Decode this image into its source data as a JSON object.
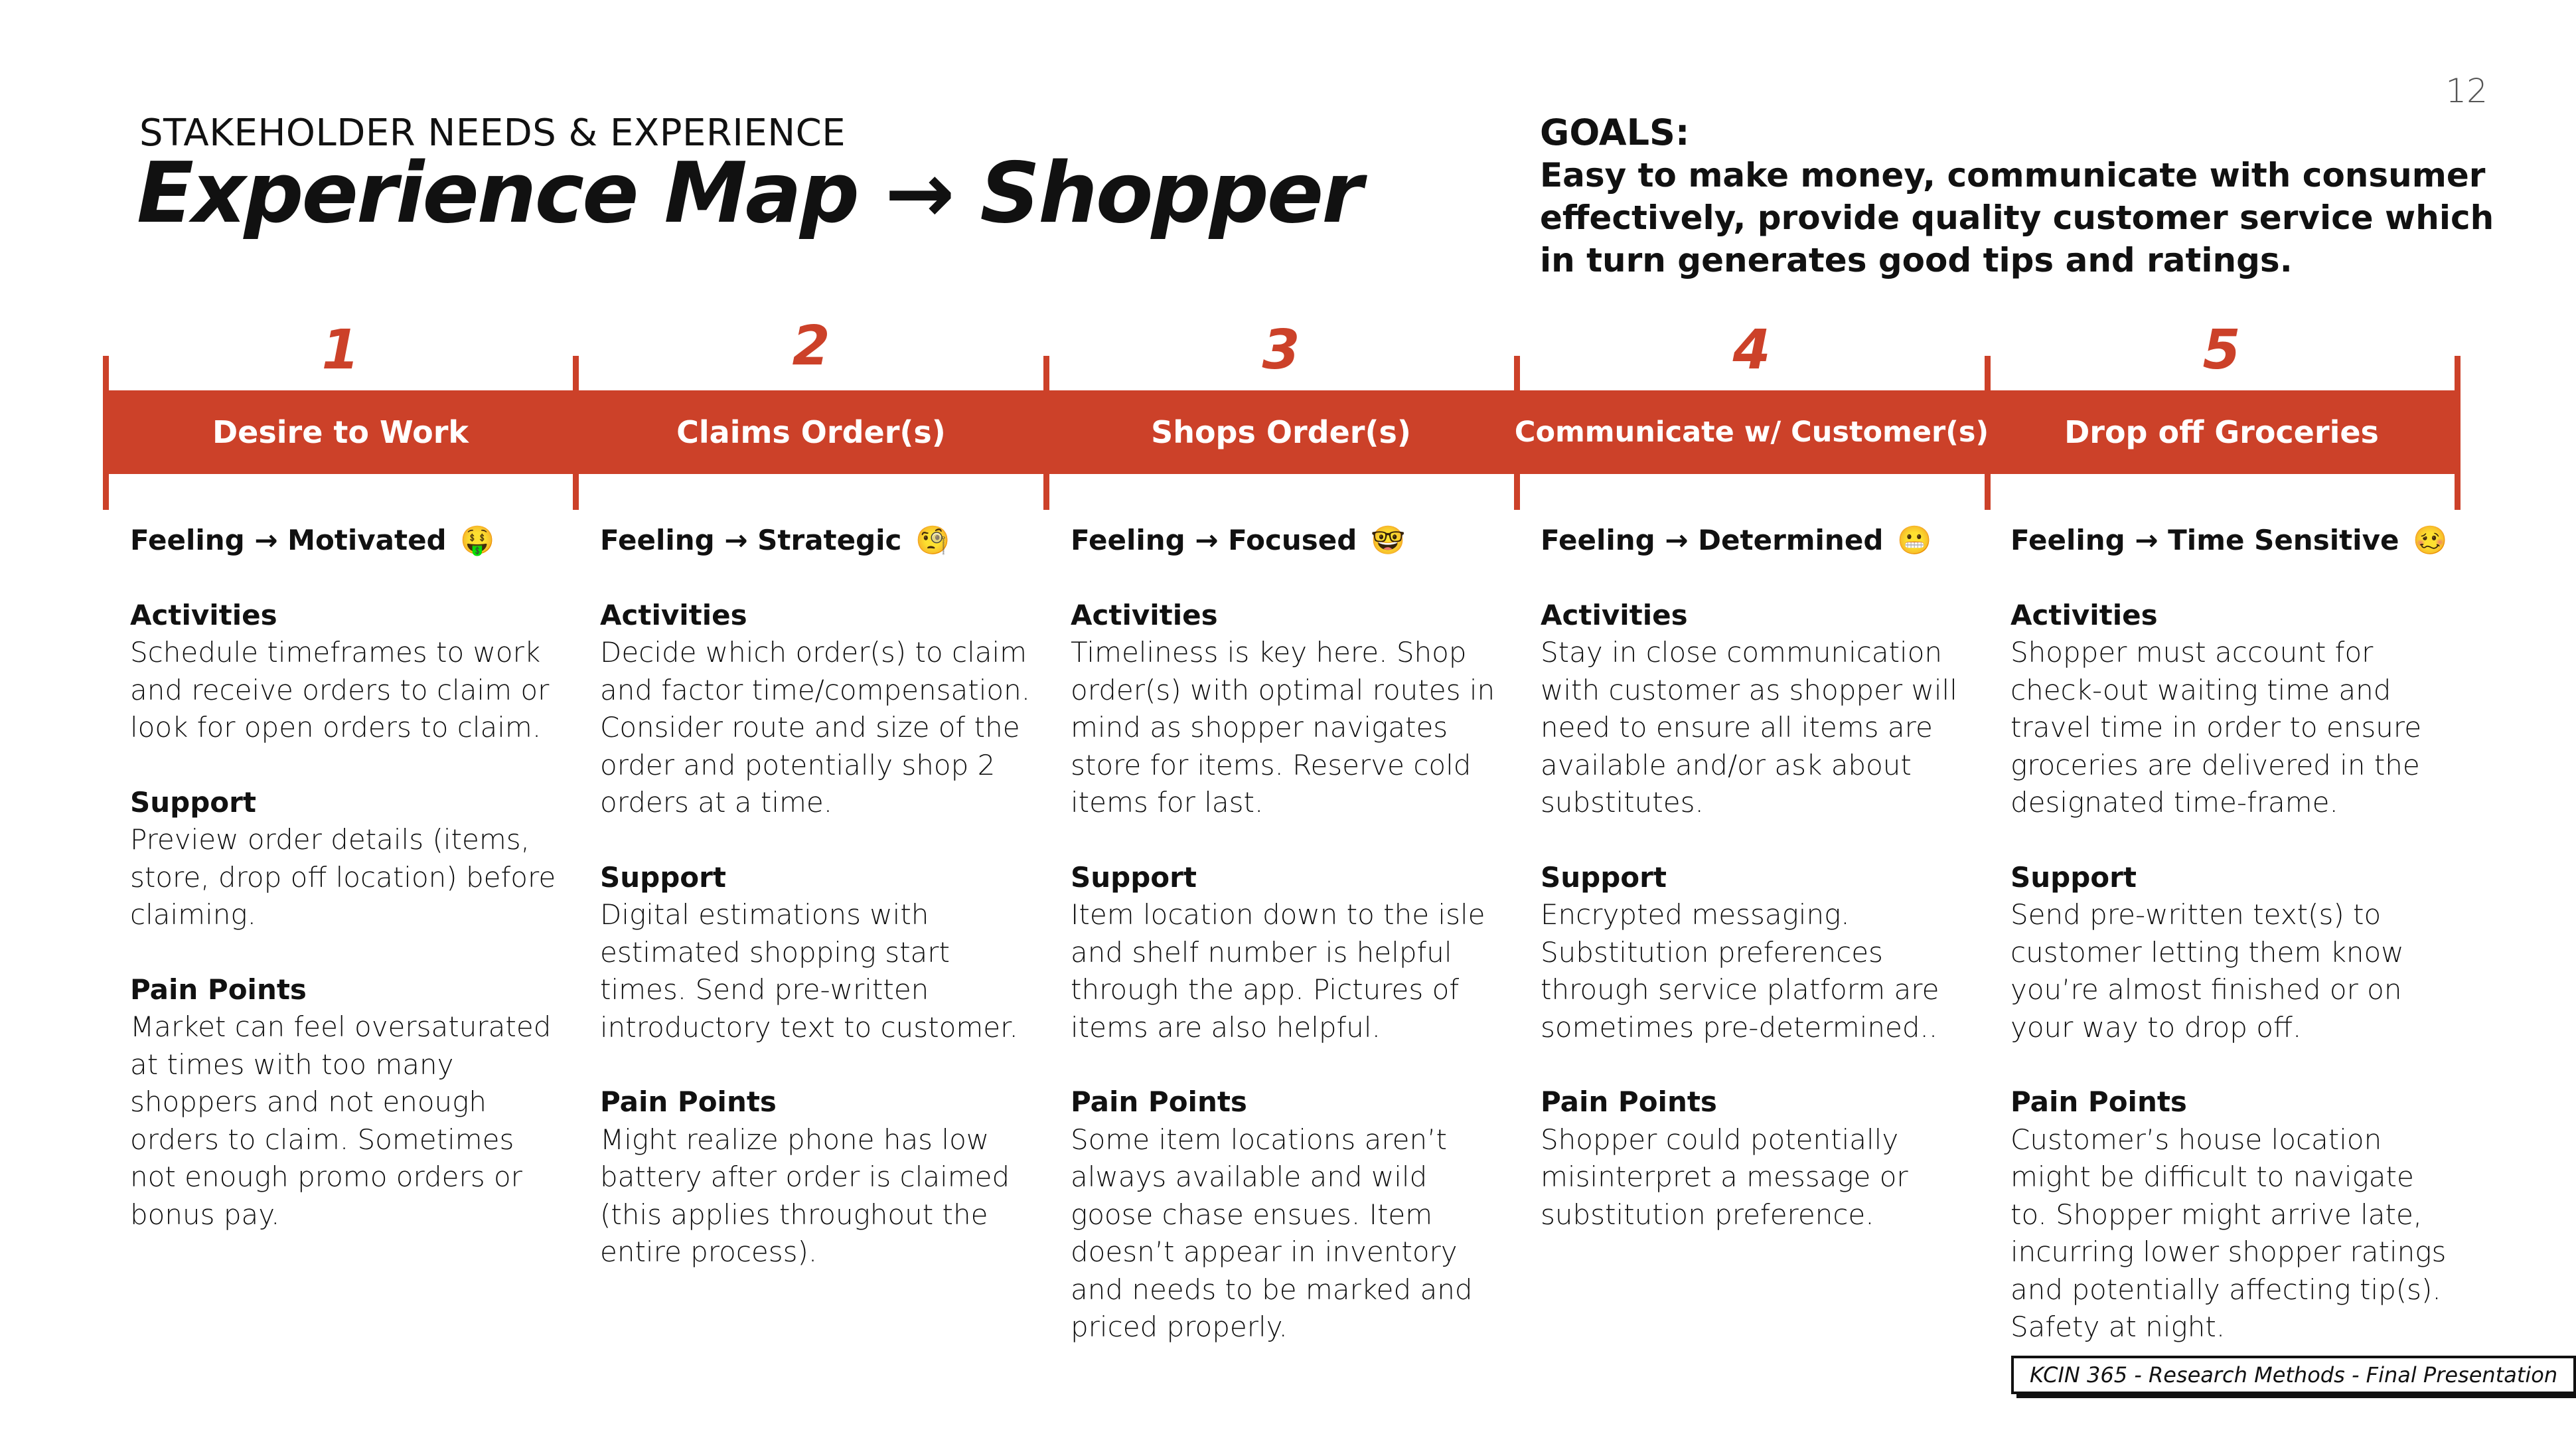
{
  "page_number": "12",
  "header": {
    "overline": "STAKEHOLDER NEEDS & EXPERIENCE",
    "title": "Experience Map → Shopper"
  },
  "goals": {
    "heading": "GOALS:",
    "text": "Easy to make money, communicate with consumer effectively, provide quality customer service which in turn generates good tips and ratings."
  },
  "colors": {
    "accent": "#cc4129"
  },
  "steps": [
    {
      "number": "1",
      "label": "Desire to Work",
      "feeling": "Feeling → Motivated",
      "emoji": "🤑",
      "activities_title": "Activities",
      "activities": "Schedule timeframes to work and receive orders to claim or look for open orders to claim.",
      "support_title": "Support",
      "support": "Preview order details (items, store, drop off location) before claiming.",
      "pain_title": "Pain Points",
      "pain": "Market can feel oversaturated at times with too many shoppers and not enough orders to claim. Sometimes not enough promo orders or bonus pay."
    },
    {
      "number": "2",
      "label": "Claims Order(s)",
      "feeling": "Feeling → Strategic",
      "emoji": "🧐",
      "activities_title": "Activities",
      "activities": "Decide which order(s) to claim and factor time/compensation. Consider route and size of the order and potentially shop 2 orders at a time.",
      "support_title": "Support",
      "support": "Digital estimations with estimated shopping start times. Send pre-written introductory text to customer.",
      "pain_title": "Pain Points",
      "pain": "Might realize phone has low battery after order is claimed (this applies throughout the entire process)."
    },
    {
      "number": "3",
      "label": "Shops Order(s)",
      "feeling": "Feeling → Focused",
      "emoji": "🤓",
      "activities_title": "Activities",
      "activities": "Timeliness is key here. Shop order(s) with optimal routes in mind as shopper navigates store for items. Reserve cold items for last.",
      "support_title": "Support",
      "support": "Item location down to the isle and shelf number is helpful through the app. Pictures of items are also helpful.",
      "pain_title": "Pain Points",
      "pain": "Some item locations aren’t always available and wild goose chase ensues. Item doesn’t appear in inventory and needs to be marked and priced properly."
    },
    {
      "number": "4",
      "label": "Communicate w/ Customer(s)",
      "feeling": "Feeling → Determined",
      "emoji": "😬",
      "activities_title": "Activities",
      "activities": "Stay in close communication with customer as shopper will need to ensure all items are available and/or ask about substitutes.",
      "support_title": "Support",
      "support": "Encrypted messaging. Substitution preferences through service platform are sometimes pre-determined..",
      "pain_title": "Pain Points",
      "pain": "Shopper could potentially misinterpret a message or substitution preference."
    },
    {
      "number": "5",
      "label": "Drop off Groceries",
      "feeling": "Feeling → Time Sensitive",
      "emoji": "🥴",
      "activities_title": "Activities",
      "activities": "Shopper must account for check-out waiting time and travel time in order to ensure groceries are delivered in the designated time-frame.",
      "support_title": "Support",
      "support": "Send pre-written text(s) to customer letting them know you’re almost finished or on your way to drop off.",
      "pain_title": "Pain Points",
      "pain": "Customer’s house location might be difficult to navigate to. Shopper might arrive late, incurring lower shopper ratings and potentially affecting tip(s). Safety at night."
    }
  ],
  "footer": "KCIN 365 - Research Methods - Final Presentation"
}
